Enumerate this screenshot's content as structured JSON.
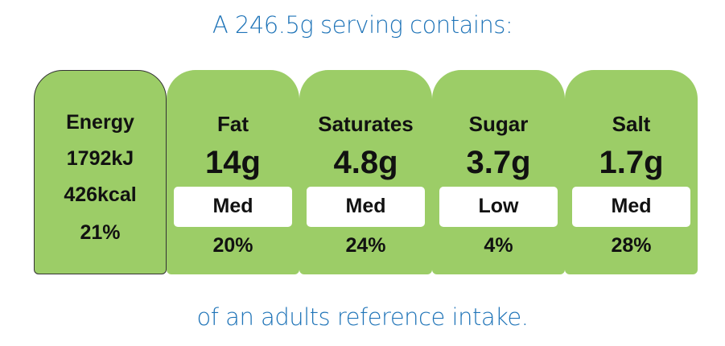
{
  "header": {
    "title": "A 246.5g serving contains:"
  },
  "energy": {
    "name": "Energy",
    "kj": "1792kJ",
    "kcal": "426kcal",
    "percent": "21%"
  },
  "nutrients": [
    {
      "name": "Fat",
      "amount": "14g",
      "level": "Med",
      "percent": "20%"
    },
    {
      "name": "Saturates",
      "amount": "4.8g",
      "level": "Med",
      "percent": "24%"
    },
    {
      "name": "Sugar",
      "amount": "3.7g",
      "level": "Low",
      "percent": "4%"
    },
    {
      "name": "Salt",
      "amount": "1.7g",
      "level": "Med",
      "percent": "28%"
    }
  ],
  "footer": {
    "text": "of an adults reference intake."
  }
}
